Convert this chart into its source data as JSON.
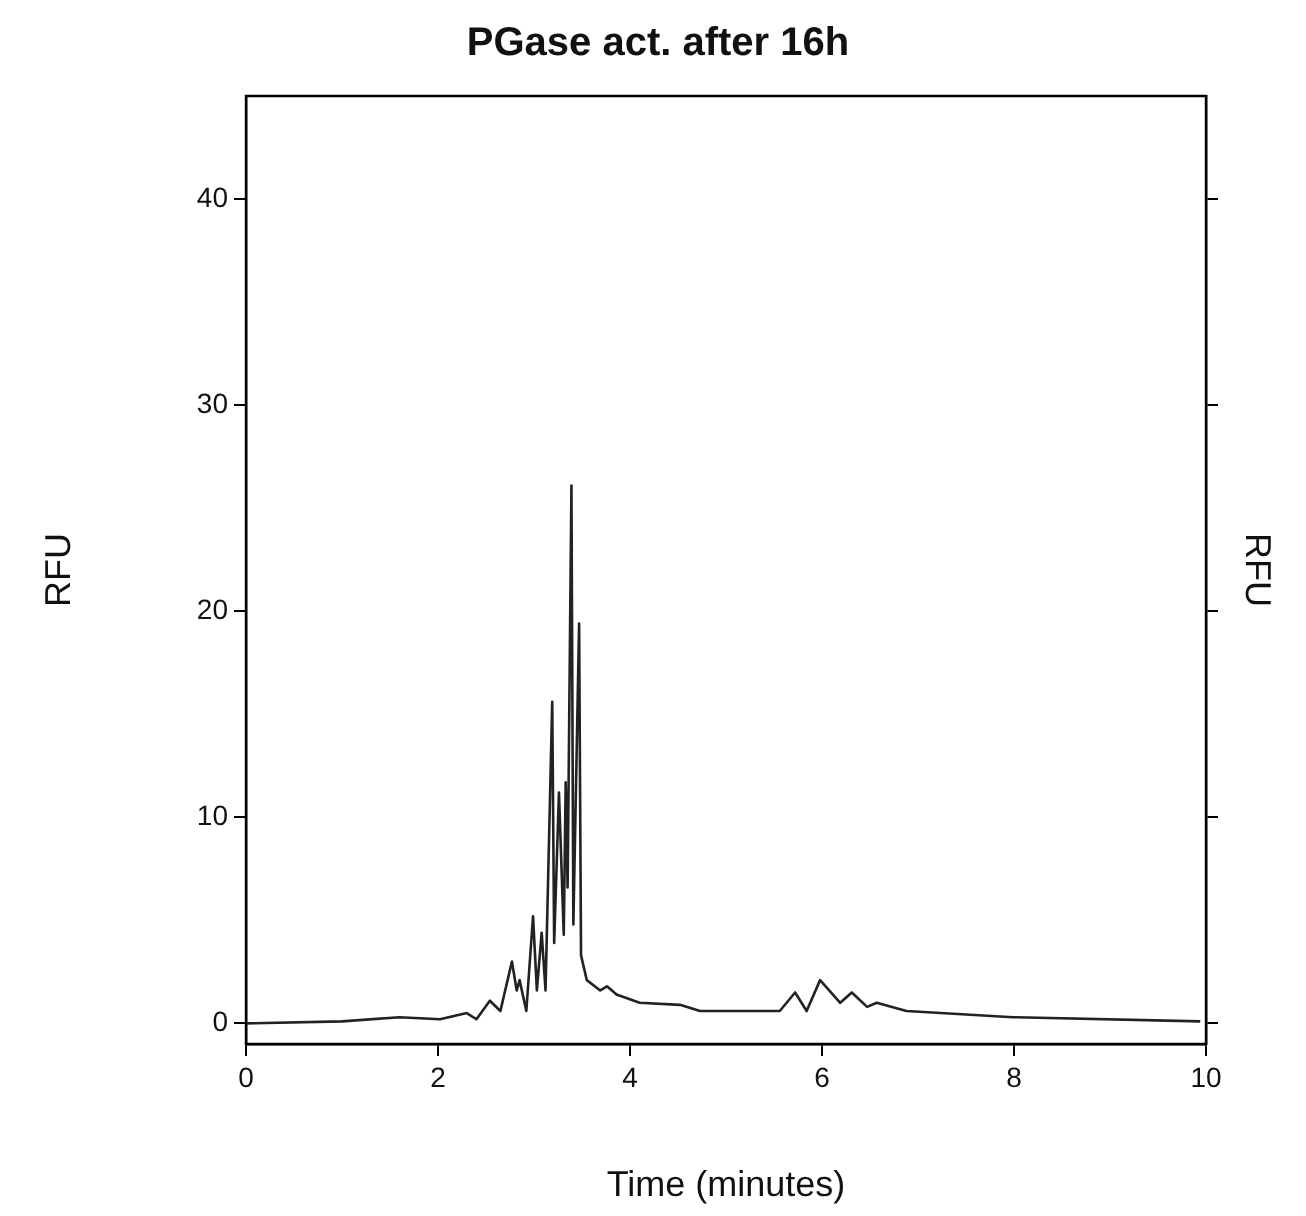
{
  "chart_data": {
    "type": "line",
    "title": "PGase act. after 16h",
    "xlabel": "Time (minutes)",
    "ylabel": "RFU",
    "y2label": "RFU",
    "x": [
      0,
      1,
      1.6,
      2.02,
      2.3,
      2.4,
      2.54,
      2.65,
      2.77,
      2.82,
      2.85,
      2.92,
      2.99,
      3.03,
      3.08,
      3.12,
      3.19,
      3.21,
      3.26,
      3.31,
      3.33,
      3.35,
      3.39,
      3.41,
      3.47,
      3.49,
      3.55,
      3.69,
      3.76,
      3.86,
      4.1,
      4.52,
      4.73,
      5.56,
      5.72,
      5.84,
      5.98,
      6.19,
      6.31,
      6.47,
      6.57,
      6.88,
      7.99,
      9.94
    ],
    "series": [
      {
        "color": "#222222",
        "values": [
          0,
          0.1,
          0.3,
          0.2,
          0.5,
          0.2,
          1.1,
          0.6,
          3.0,
          1.6,
          2.1,
          0.6,
          5.2,
          1.6,
          4.4,
          1.6,
          15.6,
          3.9,
          11.2,
          4.3,
          11.7,
          6.6,
          26.1,
          4.8,
          19.4,
          3.3,
          2.1,
          1.6,
          1.8,
          1.4,
          1.0,
          0.9,
          0.6,
          0.6,
          1.5,
          0.6,
          2.1,
          1.0,
          1.5,
          0.8,
          1.0,
          0.6,
          0.3,
          0.1
        ]
      }
    ],
    "xlim": [
      0,
      10
    ],
    "xticks": [
      0,
      2,
      4,
      6,
      8,
      10
    ],
    "ylim": [
      -1,
      45
    ],
    "yticks": [
      0,
      10,
      20,
      30,
      40
    ],
    "grid": false,
    "legend": false,
    "marker": "none",
    "line_style": "solid"
  }
}
